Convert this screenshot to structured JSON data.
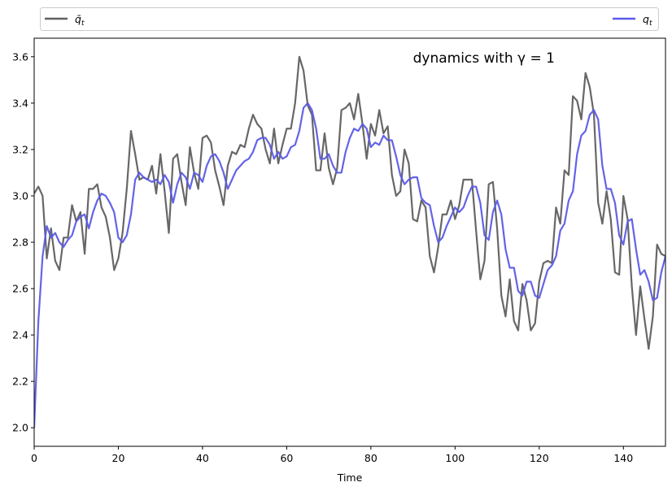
{
  "colors": {
    "q_bar_line": "#5f5f5f",
    "q_line": "#5b5be8",
    "axis": "#000000",
    "legend_border": "#cccccc"
  },
  "chart_data": {
    "type": "line",
    "title": "",
    "xlabel": "Time",
    "ylabel": "",
    "xlim": [
      0,
      150
    ],
    "ylim": [
      1.92,
      3.68
    ],
    "xticks": [
      0,
      20,
      40,
      60,
      80,
      100,
      120,
      140
    ],
    "yticks": [
      2.0,
      2.2,
      2.4,
      2.6,
      2.8,
      3.0,
      3.2,
      3.4,
      3.6
    ],
    "xtick_labels": [
      "0",
      "20",
      "40",
      "60",
      "80",
      "100",
      "120",
      "140"
    ],
    "ytick_labels": [
      "2.0",
      "2.2",
      "2.4",
      "2.6",
      "2.8",
      "3.0",
      "3.2",
      "3.4",
      "3.6"
    ],
    "grid": false,
    "legend_placement": "top, outside, spanning width",
    "annotation": {
      "text": "dynamics with γ = 1",
      "position": "top-right",
      "x": 90,
      "y": 3.595
    },
    "series": [
      {
        "name": "q̄_t",
        "legend_base": "q̄",
        "legend_sub": "t",
        "color": "#5f5f5f",
        "values": [
          3.01,
          3.04,
          3.0,
          2.73,
          2.86,
          2.72,
          2.68,
          2.82,
          2.82,
          2.96,
          2.89,
          2.93,
          2.75,
          3.03,
          3.03,
          3.05,
          2.95,
          2.91,
          2.82,
          2.68,
          2.73,
          2.84,
          3.03,
          3.28,
          3.18,
          3.07,
          3.08,
          3.07,
          3.13,
          3.01,
          3.18,
          3.02,
          2.84,
          3.16,
          3.18,
          3.06,
          2.96,
          3.21,
          3.1,
          3.03,
          3.25,
          3.26,
          3.23,
          3.11,
          3.04,
          2.96,
          3.13,
          3.19,
          3.18,
          3.22,
          3.21,
          3.29,
          3.35,
          3.31,
          3.29,
          3.2,
          3.14,
          3.29,
          3.14,
          3.22,
          3.29,
          3.29,
          3.4,
          3.6,
          3.54,
          3.39,
          3.35,
          3.11,
          3.11,
          3.27,
          3.12,
          3.05,
          3.12,
          3.37,
          3.38,
          3.4,
          3.33,
          3.44,
          3.31,
          3.16,
          3.31,
          3.26,
          3.37,
          3.27,
          3.3,
          3.09,
          3.0,
          3.02,
          3.2,
          3.14,
          2.9,
          2.89,
          2.98,
          2.95,
          2.74,
          2.67,
          2.78,
          2.92,
          2.92,
          2.98,
          2.9,
          2.96,
          3.07,
          3.07,
          3.07,
          2.85,
          2.64,
          2.72,
          3.05,
          3.06,
          2.86,
          2.57,
          2.48,
          2.64,
          2.46,
          2.42,
          2.62,
          2.55,
          2.42,
          2.45,
          2.63,
          2.71,
          2.72,
          2.71,
          2.95,
          2.88,
          3.11,
          3.09,
          3.43,
          3.41,
          3.33,
          3.53,
          3.47,
          3.35,
          2.97,
          2.88,
          3.02,
          2.9,
          2.67,
          2.66,
          3.0,
          2.9,
          2.61,
          2.4,
          2.61,
          2.47,
          2.34,
          2.48,
          2.79,
          2.75,
          2.74
        ]
      },
      {
        "name": "q_t",
        "legend_base": "q",
        "legend_sub": "t",
        "color": "#5b5be8",
        "values": [
          2.0,
          2.46,
          2.74,
          2.87,
          2.82,
          2.84,
          2.8,
          2.78,
          2.81,
          2.83,
          2.89,
          2.91,
          2.92,
          2.86,
          2.93,
          2.98,
          3.01,
          3.0,
          2.97,
          2.93,
          2.82,
          2.8,
          2.83,
          2.92,
          3.07,
          3.1,
          3.08,
          3.07,
          3.06,
          3.07,
          3.05,
          3.09,
          3.06,
          2.97,
          3.05,
          3.1,
          3.08,
          3.03,
          3.1,
          3.09,
          3.06,
          3.13,
          3.17,
          3.18,
          3.15,
          3.1,
          3.03,
          3.07,
          3.11,
          3.13,
          3.15,
          3.16,
          3.19,
          3.24,
          3.25,
          3.25,
          3.22,
          3.16,
          3.19,
          3.16,
          3.17,
          3.21,
          3.22,
          3.28,
          3.38,
          3.4,
          3.37,
          3.29,
          3.16,
          3.16,
          3.18,
          3.13,
          3.1,
          3.1,
          3.19,
          3.25,
          3.29,
          3.28,
          3.31,
          3.29,
          3.21,
          3.23,
          3.22,
          3.26,
          3.24,
          3.24,
          3.17,
          3.09,
          3.05,
          3.07,
          3.08,
          3.08,
          2.99,
          2.97,
          2.96,
          2.87,
          2.8,
          2.82,
          2.87,
          2.91,
          2.95,
          2.93,
          2.95,
          3.0,
          3.04,
          3.04,
          2.97,
          2.83,
          2.81,
          2.93,
          2.98,
          2.92,
          2.77,
          2.69,
          2.69,
          2.59,
          2.57,
          2.63,
          2.63,
          2.57,
          2.56,
          2.62,
          2.68,
          2.7,
          2.74,
          2.85,
          2.88,
          2.98,
          3.02,
          3.18,
          3.26,
          3.28,
          3.35,
          3.37,
          3.33,
          3.13,
          3.03,
          3.03,
          2.97,
          2.83,
          2.79,
          2.89,
          2.9,
          2.77,
          2.66,
          2.68,
          2.63,
          2.55,
          2.56,
          2.67,
          2.74
        ]
      }
    ]
  }
}
